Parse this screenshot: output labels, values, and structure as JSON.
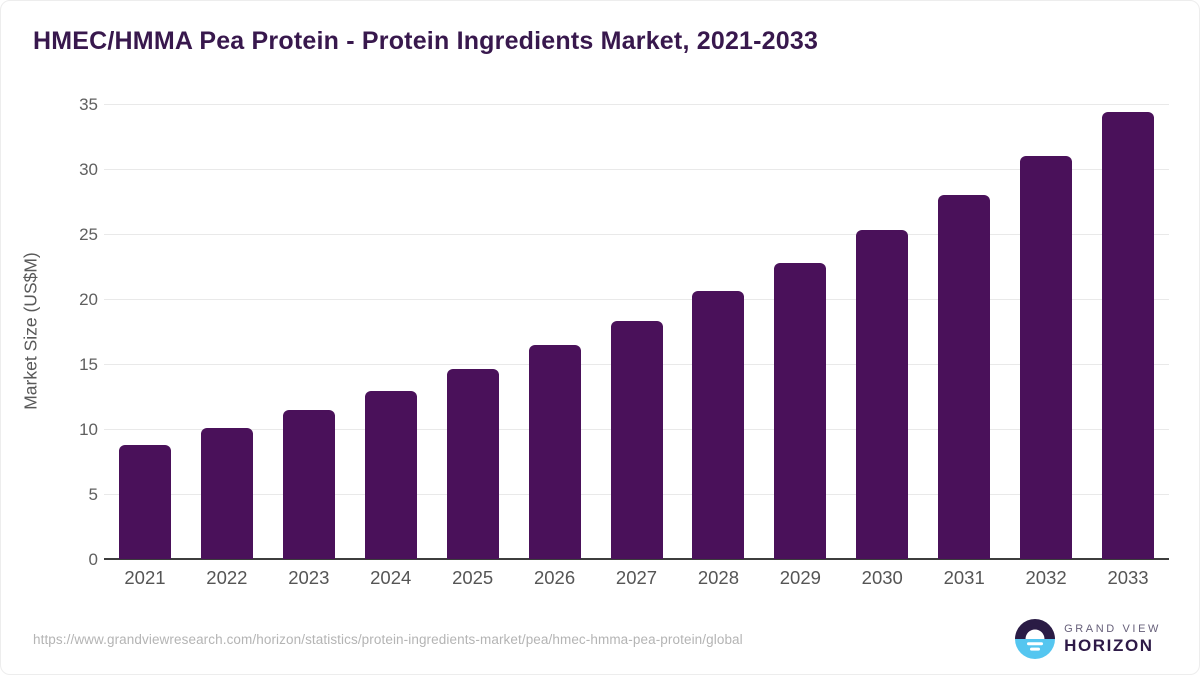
{
  "title": "HMEC/HMMA Pea Protein - Protein Ingredients Market, 2021-2033",
  "chart_data": {
    "type": "bar",
    "categories": [
      "2021",
      "2022",
      "2023",
      "2024",
      "2025",
      "2026",
      "2027",
      "2028",
      "2029",
      "2030",
      "2031",
      "2032",
      "2033"
    ],
    "values": [
      8.8,
      10.1,
      11.5,
      12.9,
      14.6,
      16.5,
      18.3,
      20.6,
      22.8,
      25.3,
      28.0,
      31.0,
      34.4
    ],
    "title": "HMEC/HMMA Pea Protein - Protein Ingredients Market, 2021-2033",
    "xlabel": "",
    "ylabel": "Market Size (US$M)",
    "ylim": [
      0,
      35
    ],
    "ytick_step": 5,
    "yticks": [
      0,
      5,
      10,
      15,
      20,
      25,
      30,
      35
    ],
    "grid": true,
    "legend": false,
    "bar_color": "#4a115a"
  },
  "footer": {
    "source_url": "https://www.grandviewresearch.com/horizon/statistics/protein-ingredients-market/pea/hmec-hmma-pea-protein/global",
    "brand": {
      "line1": "GRAND VIEW",
      "line2": "HORIZON",
      "logo": "grand-view-horizon-logo",
      "logo_top_color": "#2a1b45",
      "logo_bottom_color": "#55c6f0"
    }
  },
  "colors": {
    "title": "#38184d",
    "bar": "#4a115a",
    "gridline": "#e9e9e9",
    "axis_line": "#3d3d3d",
    "tick_label": "#5f5f5f",
    "url_text": "#b4b4b4"
  }
}
